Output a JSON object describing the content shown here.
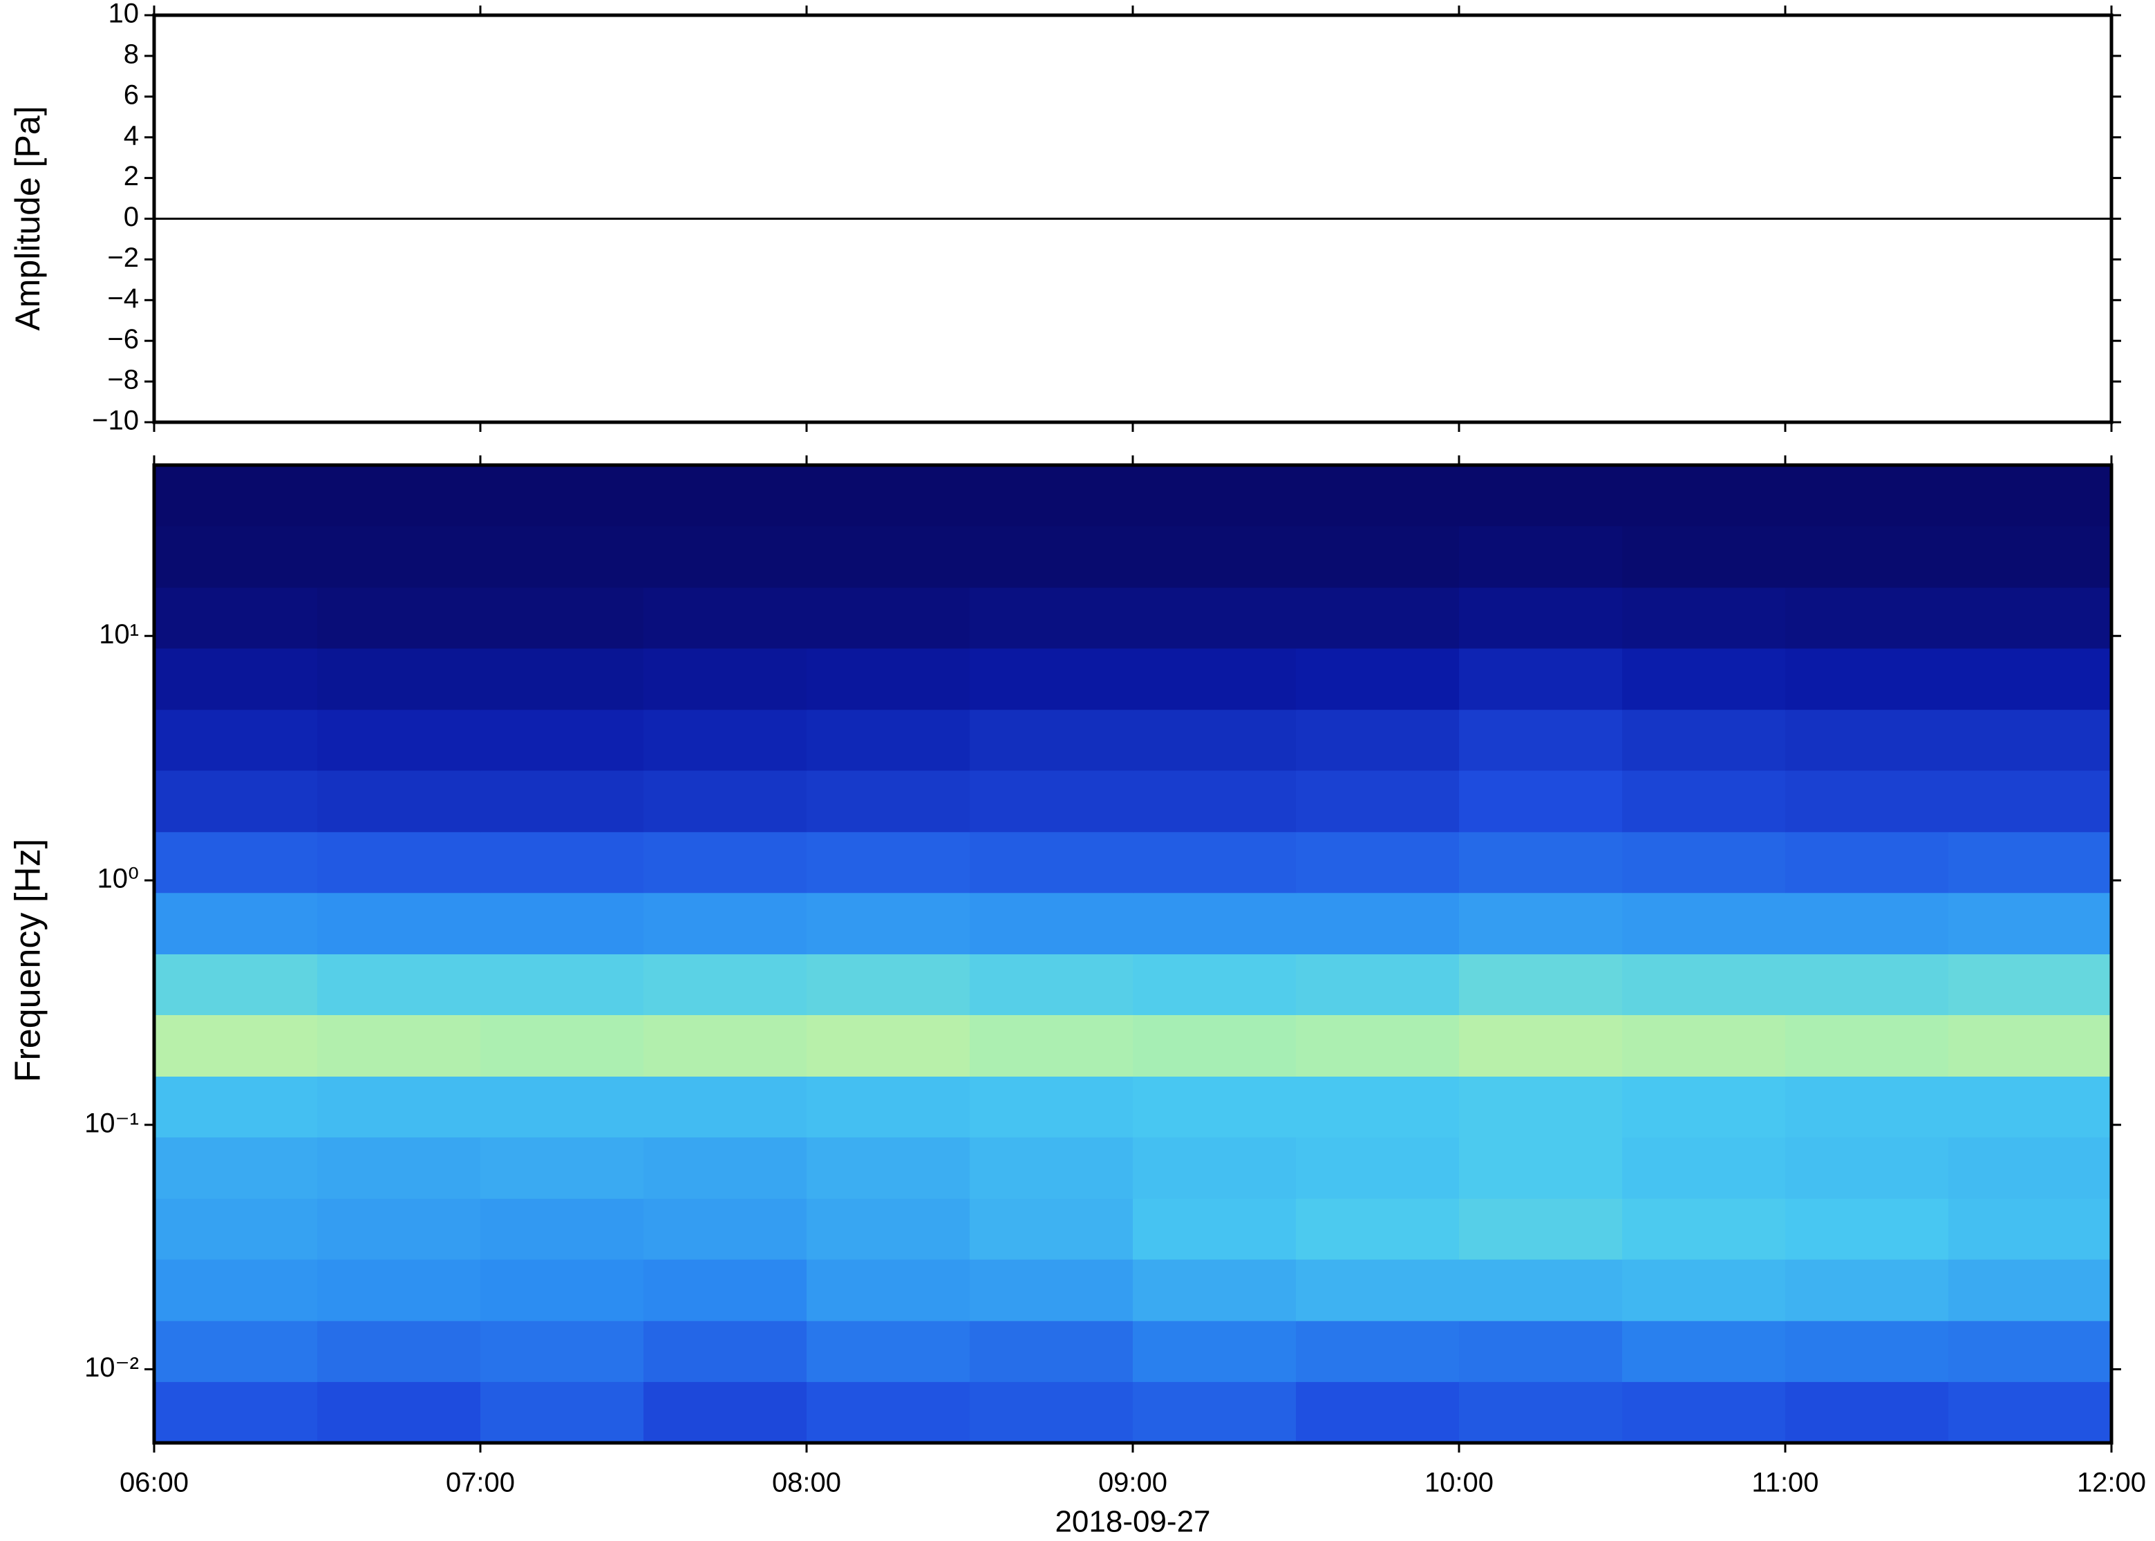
{
  "chart_data": [
    {
      "type": "line",
      "ylabel": "Amplitude [Pa]",
      "x": [
        6,
        6.5,
        7,
        7.5,
        8,
        8.5,
        9,
        9.5,
        10,
        10.5,
        11,
        11.5,
        12
      ],
      "series": [
        {
          "color": "#000000",
          "values": [
            0,
            0,
            0,
            0,
            0,
            0,
            0,
            0,
            0,
            0,
            0,
            0,
            0
          ]
        }
      ],
      "xlim": [
        6,
        12
      ],
      "ylim": [
        -10,
        10
      ],
      "yticks": [
        {
          "value": -10,
          "label": "−10"
        },
        {
          "value": -8,
          "label": "−8"
        },
        {
          "value": -6,
          "label": "−6"
        },
        {
          "value": -4,
          "label": "−4"
        },
        {
          "value": -2,
          "label": "−2"
        },
        0,
        2,
        4,
        6,
        8,
        10
      ]
    },
    {
      "type": "heatmap",
      "ylabel": "Frequency [Hz]",
      "xlabel": "2018-09-27",
      "x_edges": [
        6,
        6.5,
        7,
        7.5,
        8,
        8.5,
        9,
        9.5,
        10,
        10.5,
        11,
        11.5,
        12
      ],
      "y_edges": [
        0.005,
        0.0089,
        0.0158,
        0.0282,
        0.05,
        0.0891,
        0.158,
        0.282,
        0.5,
        0.891,
        1.58,
        2.82,
        5,
        8.91,
        15.8,
        28.2,
        50
      ],
      "z": [
        [
          0.3,
          0.28,
          0.32,
          0.27,
          0.3,
          0.31,
          0.33,
          0.29,
          0.31,
          0.3,
          0.28,
          0.3
        ],
        [
          0.38,
          0.36,
          0.37,
          0.34,
          0.38,
          0.36,
          0.4,
          0.38,
          0.37,
          0.4,
          0.39,
          0.38
        ],
        [
          0.45,
          0.44,
          0.43,
          0.42,
          0.46,
          0.47,
          0.5,
          0.52,
          0.52,
          0.53,
          0.52,
          0.5
        ],
        [
          0.48,
          0.47,
          0.46,
          0.47,
          0.49,
          0.52,
          0.56,
          0.58,
          0.6,
          0.58,
          0.57,
          0.55
        ],
        [
          0.5,
          0.49,
          0.5,
          0.49,
          0.51,
          0.53,
          0.55,
          0.56,
          0.58,
          0.56,
          0.55,
          0.54
        ],
        [
          0.55,
          0.54,
          0.54,
          0.54,
          0.55,
          0.56,
          0.57,
          0.57,
          0.58,
          0.57,
          0.56,
          0.56
        ],
        [
          0.78,
          0.77,
          0.76,
          0.77,
          0.78,
          0.76,
          0.75,
          0.76,
          0.78,
          0.77,
          0.76,
          0.77
        ],
        [
          0.62,
          0.6,
          0.6,
          0.61,
          0.62,
          0.6,
          0.59,
          0.6,
          0.63,
          0.62,
          0.62,
          0.63
        ],
        [
          0.45,
          0.44,
          0.44,
          0.45,
          0.46,
          0.45,
          0.45,
          0.45,
          0.47,
          0.46,
          0.46,
          0.47
        ],
        [
          0.32,
          0.31,
          0.31,
          0.32,
          0.33,
          0.32,
          0.32,
          0.33,
          0.35,
          0.34,
          0.33,
          0.34
        ],
        [
          0.22,
          0.21,
          0.21,
          0.22,
          0.23,
          0.24,
          0.24,
          0.25,
          0.28,
          0.26,
          0.25,
          0.25
        ],
        [
          0.17,
          0.16,
          0.16,
          0.17,
          0.18,
          0.2,
          0.2,
          0.21,
          0.24,
          0.22,
          0.21,
          0.21
        ],
        [
          0.11,
          0.1,
          0.1,
          0.11,
          0.12,
          0.13,
          0.13,
          0.14,
          0.17,
          0.15,
          0.14,
          0.14
        ],
        [
          0.05,
          0.04,
          0.04,
          0.05,
          0.05,
          0.06,
          0.06,
          0.06,
          0.08,
          0.07,
          0.06,
          0.06
        ],
        [
          0.02,
          0.02,
          0.02,
          0.02,
          0.02,
          0.02,
          0.02,
          0.02,
          0.03,
          0.02,
          0.02,
          0.02
        ],
        [
          0.01,
          0.01,
          0.01,
          0.01,
          0.01,
          0.01,
          0.01,
          0.01,
          0.01,
          0.01,
          0.01,
          0.01
        ]
      ],
      "colormap": [
        "#080866",
        "#0a1aa8",
        "#1f4ee0",
        "#2c8cf2",
        "#48c8f2",
        "#90ecc0",
        "#e8f490",
        "#f4b060"
      ],
      "xlim": [
        6,
        12
      ],
      "xticks": [
        {
          "value": 6,
          "label": "06:00"
        },
        {
          "value": 7,
          "label": "07:00"
        },
        {
          "value": 8,
          "label": "08:00"
        },
        {
          "value": 9,
          "label": "09:00"
        },
        {
          "value": 10,
          "label": "10:00"
        },
        {
          "value": 11,
          "label": "11:00"
        },
        {
          "value": 12,
          "label": "12:00"
        }
      ],
      "ylim": [
        0.005,
        50
      ],
      "log_y": true,
      "yticks": [
        {
          "value": 0.01,
          "label": "10⁻²"
        },
        {
          "value": 0.1,
          "label": "10⁻¹"
        },
        {
          "value": 1,
          "label": "10⁰"
        },
        {
          "value": 10,
          "label": "10¹"
        }
      ]
    }
  ]
}
